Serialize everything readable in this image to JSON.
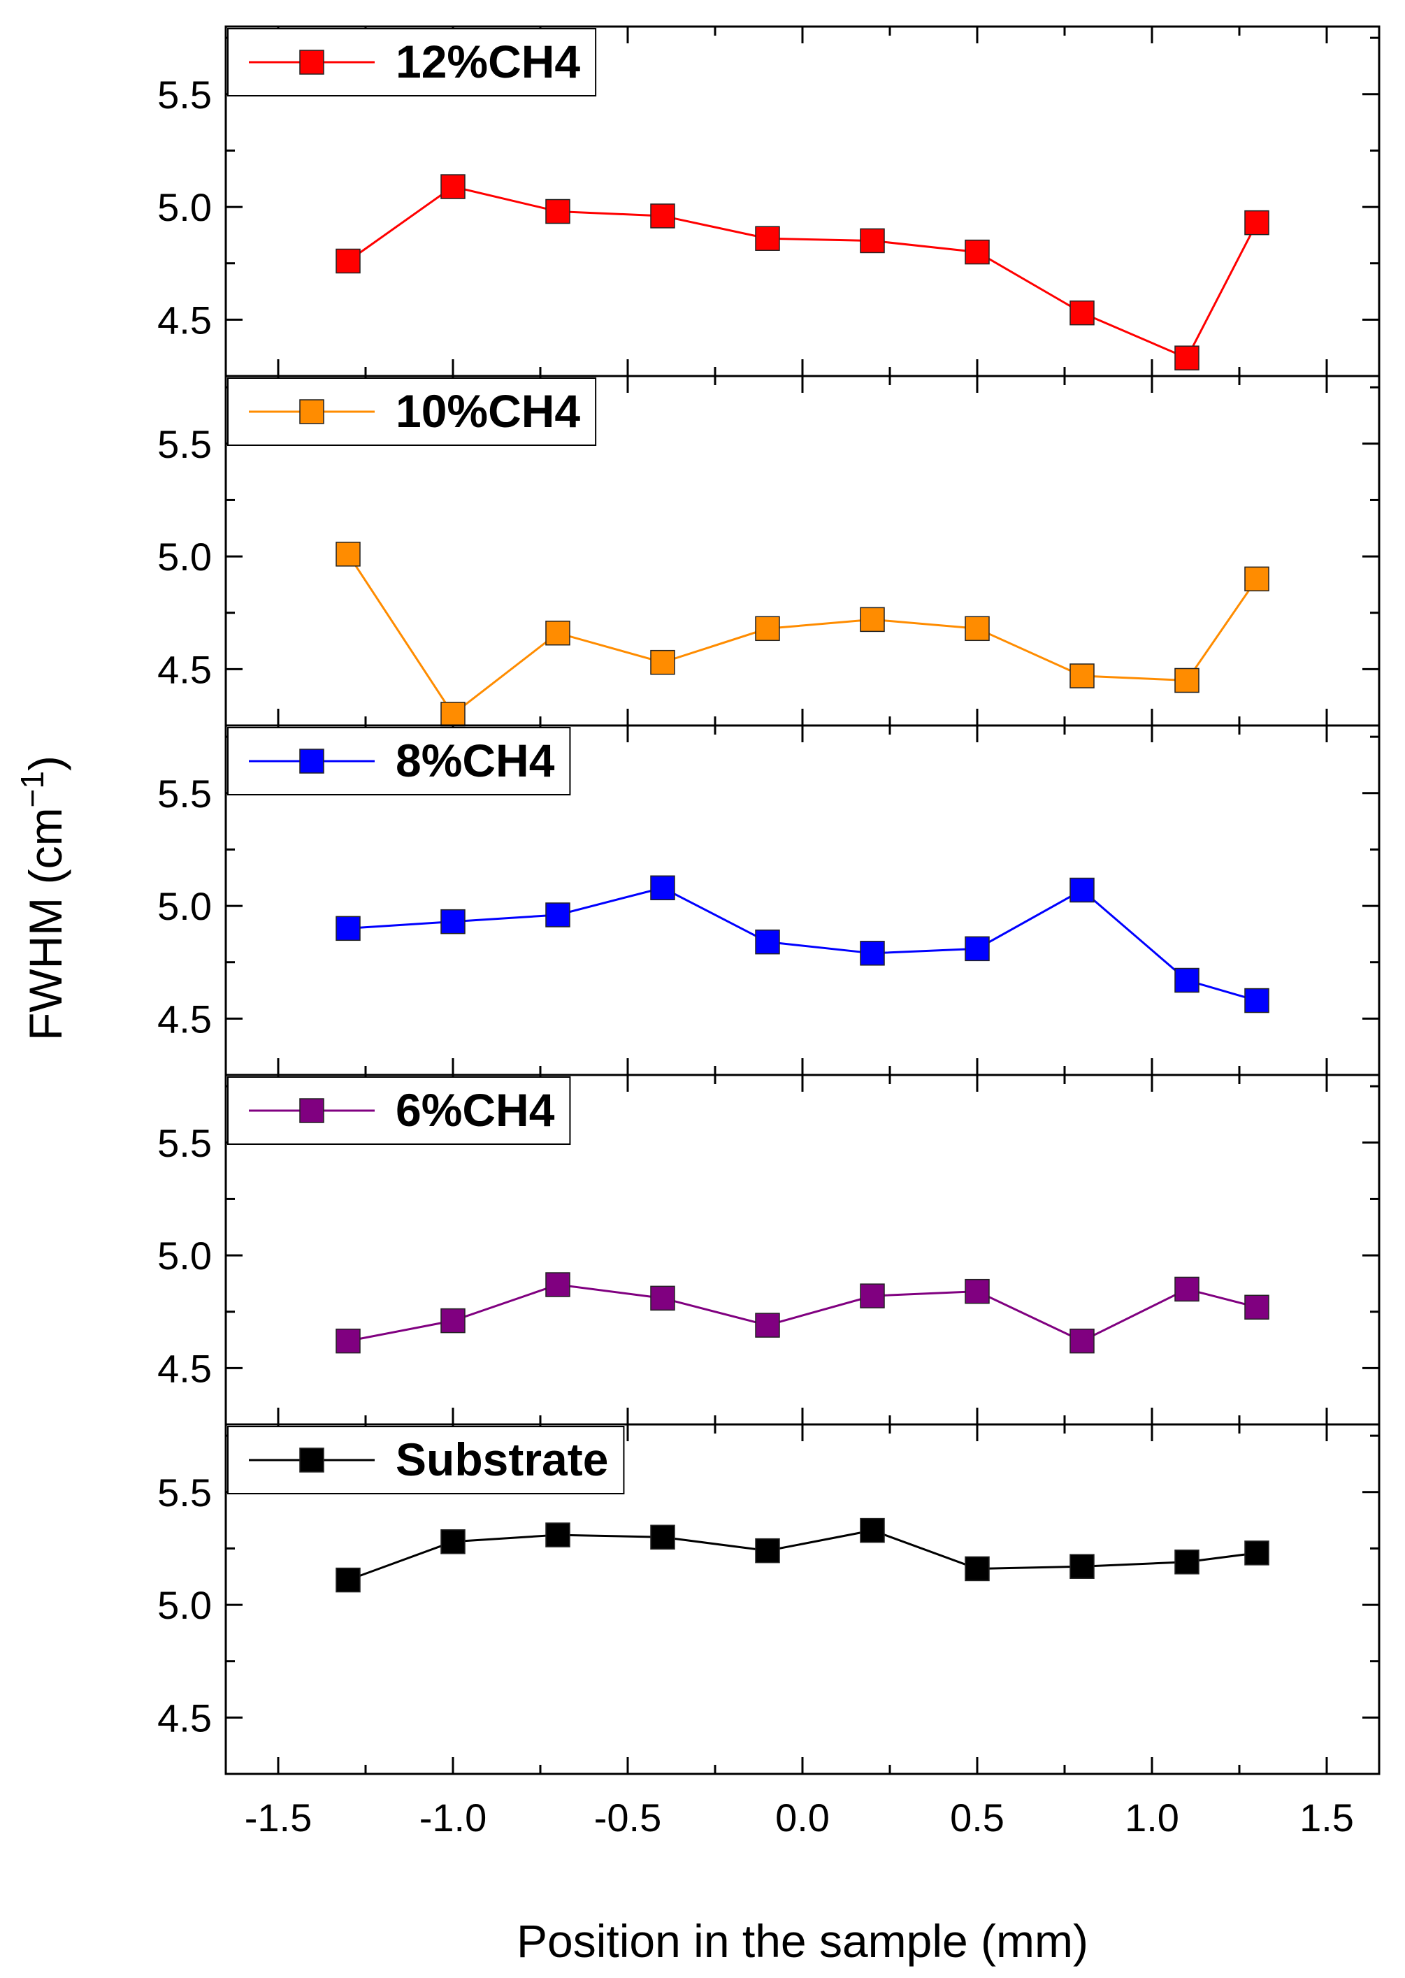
{
  "chart_data": {
    "type": "line",
    "layout": "stacked-panels",
    "xlabel": "Position in the sample (mm)",
    "ylabel": "FWHM (cm⁻¹)",
    "ylabel_base": "FWHM (cm",
    "ylabel_sup": "−1",
    "ylabel_close": ")",
    "xlim": [
      -1.65,
      1.65
    ],
    "ylim": [
      4.25,
      5.8
    ],
    "x_ticks": [
      -1.5,
      -1.0,
      -0.5,
      0.0,
      0.5,
      1.0,
      1.5
    ],
    "x_tick_labels": [
      "-1.5",
      "-1.0",
      "-0.5",
      "0.0",
      "0.5",
      "1.0",
      "1.5"
    ],
    "y_ticks": [
      4.5,
      5.0,
      5.5
    ],
    "y_tick_labels": [
      "4.5",
      "5.0",
      "5.5"
    ],
    "x": [
      -1.3,
      -1.0,
      -0.7,
      -0.4,
      -0.1,
      0.2,
      0.5,
      0.8,
      1.1,
      1.3
    ],
    "series": [
      {
        "name": "12%CH4",
        "color": "#ff0000",
        "values": [
          4.76,
          5.09,
          4.98,
          4.96,
          4.86,
          4.85,
          4.8,
          4.53,
          4.33,
          4.93
        ]
      },
      {
        "name": "10%CH4",
        "color": "#ff8c00",
        "values": [
          5.01,
          4.3,
          4.66,
          4.53,
          4.68,
          4.72,
          4.68,
          4.47,
          4.45,
          4.9
        ]
      },
      {
        "name": "8%CH4",
        "color": "#0000ff",
        "values": [
          4.9,
          4.93,
          4.96,
          5.08,
          4.84,
          4.79,
          4.81,
          5.07,
          4.67,
          4.58
        ]
      },
      {
        "name": "6%CH4",
        "color": "#800080",
        "values": [
          4.62,
          4.71,
          4.87,
          4.81,
          4.69,
          4.82,
          4.84,
          4.62,
          4.85,
          4.77
        ]
      },
      {
        "name": "Substrate",
        "color": "#000000",
        "values": [
          5.11,
          5.28,
          5.31,
          5.3,
          5.24,
          5.33,
          5.16,
          5.17,
          5.19,
          5.23
        ]
      }
    ]
  }
}
